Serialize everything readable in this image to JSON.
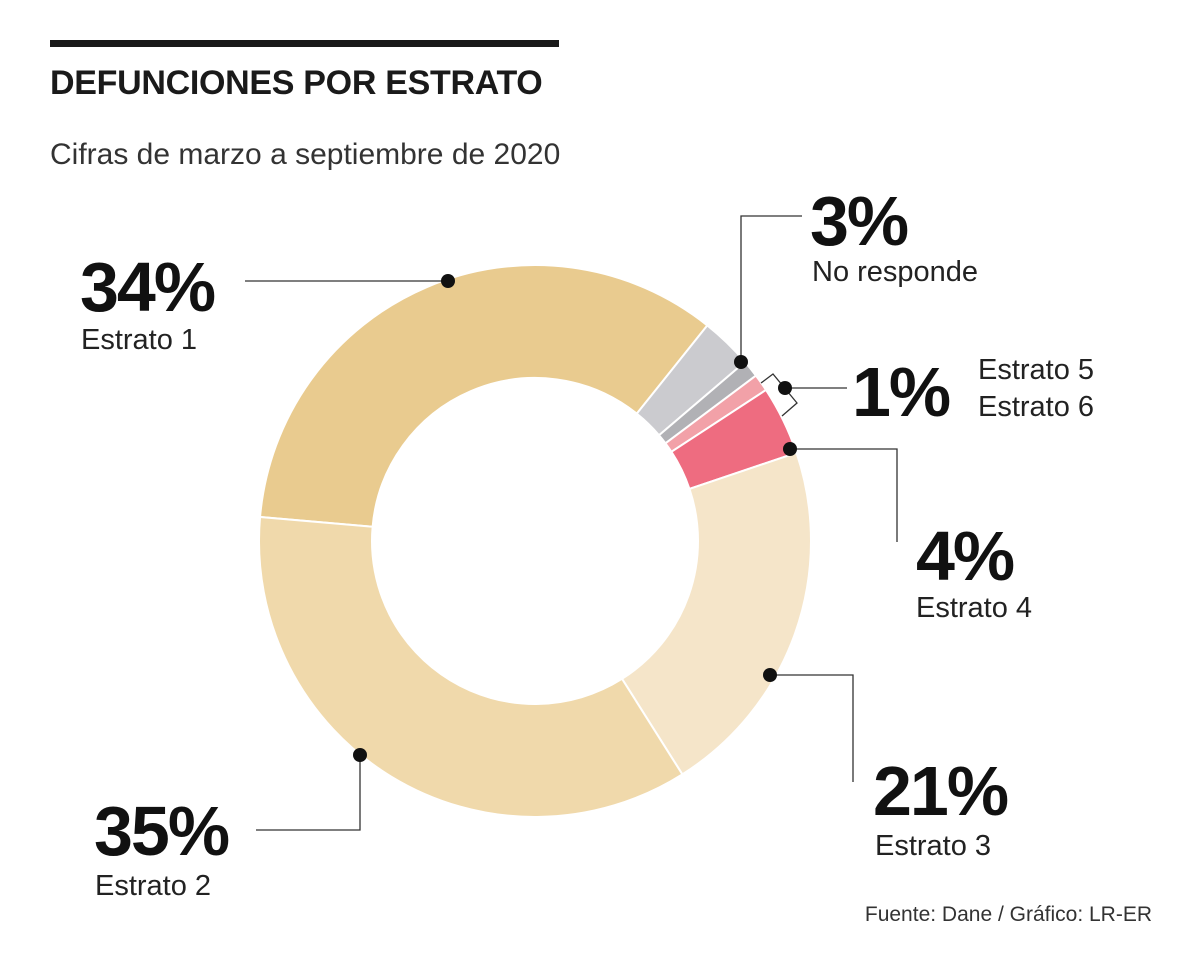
{
  "header": {
    "title": "DEFUNCIONES POR ESTRATO",
    "subtitle": "Cifras de marzo a septiembre de 2020"
  },
  "source": "Fuente: Dane / Gráfico: LR-ER",
  "colors": {
    "estrato1": "#e9cb8f",
    "estrato2": "#f0d9ab",
    "estrato3": "#f5e5c9",
    "estrato4": "#ee6c80",
    "estrato5": "#f2a1a8",
    "estrato6": "#b1b1b5",
    "no_responde": "#cbcbcf"
  },
  "chart_data": {
    "type": "pie",
    "title": "DEFUNCIONES POR ESTRATO",
    "subtitle": "Cifras de marzo a septiembre de 2020",
    "unit": "%",
    "slices": [
      {
        "name": "Estrato 1",
        "value": 34,
        "label": "34%"
      },
      {
        "name": "No responde",
        "value": 3,
        "label": "3%"
      },
      {
        "name": "Estrato 6",
        "value": 1,
        "label": "1%"
      },
      {
        "name": "Estrato 5",
        "value": 1,
        "label": "1%"
      },
      {
        "name": "Estrato 4",
        "value": 4,
        "label": "4%"
      },
      {
        "name": "Estrato 3",
        "value": 21,
        "label": "21%"
      },
      {
        "name": "Estrato 2",
        "value": 35,
        "label": "35%"
      }
    ],
    "grouped_label": {
      "names": [
        "Estrato 5",
        "Estrato 6"
      ],
      "label": "1%"
    }
  }
}
